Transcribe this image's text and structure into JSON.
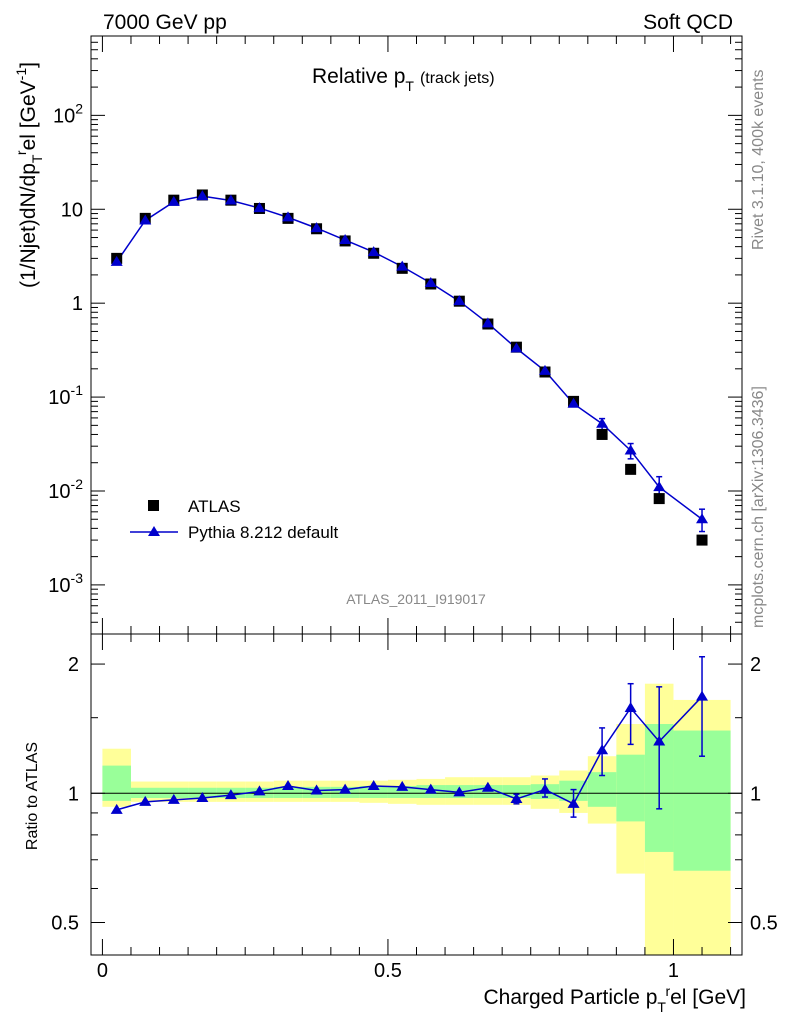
{
  "header": {
    "left": "7000 GeV pp",
    "right": "Soft QCD"
  },
  "side": {
    "rivet": "Rivet 3.1.10,  400k events",
    "source": "mcplots.cern.ch [arXiv:1306.3436]"
  },
  "watermark": "ATLAS_2011_I919017",
  "colors": {
    "data": "#000000",
    "mc": "#0000cc",
    "band_inner": "#99ff99",
    "band_outer": "#ffff99"
  },
  "chart_data": [
    {
      "type": "scatter",
      "panel": "main",
      "title_main": "Relative p",
      "title_sub": "T",
      "title_note": "(track jets)",
      "ylabel": "(1/Njet)dN/dp_T^rel [GeV^-1]",
      "yscale": "log",
      "ylim": [
        0.0003,
        700
      ],
      "xlim": [
        -0.02,
        1.12
      ],
      "ytick_labels": [
        "10^-3",
        "10^-2",
        "10^-1",
        "1",
        "10",
        "10^2"
      ],
      "legend_position": "bottom-left",
      "x": [
        0.025,
        0.075,
        0.125,
        0.175,
        0.225,
        0.275,
        0.325,
        0.375,
        0.425,
        0.475,
        0.525,
        0.575,
        0.625,
        0.675,
        0.725,
        0.775,
        0.825,
        0.875,
        0.925,
        0.975,
        1.05
      ],
      "x_halfwidth": [
        0.025,
        0.025,
        0.025,
        0.025,
        0.025,
        0.025,
        0.025,
        0.025,
        0.025,
        0.025,
        0.025,
        0.025,
        0.025,
        0.025,
        0.025,
        0.025,
        0.025,
        0.025,
        0.025,
        0.025,
        0.05
      ],
      "series": [
        {
          "name": "ATLAS",
          "marker": "square",
          "values": [
            3.0,
            8.0,
            12.5,
            14.2,
            12.5,
            10.2,
            8.0,
            6.2,
            4.6,
            3.4,
            2.35,
            1.6,
            1.05,
            0.6,
            0.34,
            0.185,
            0.09,
            0.04,
            0.017,
            0.0083,
            0.003
          ]
        },
        {
          "name": "Pythia 8.212 default",
          "marker": "triangle",
          "values": [
            2.75,
            7.6,
            12.0,
            13.8,
            12.4,
            10.3,
            8.2,
            6.3,
            4.7,
            3.5,
            2.45,
            1.64,
            1.05,
            0.61,
            0.33,
            0.19,
            0.085,
            0.052,
            0.027,
            0.011,
            0.005
          ],
          "err_low": [
            0,
            0,
            0,
            0,
            0,
            0,
            0,
            0,
            0,
            0,
            0,
            0,
            0,
            0,
            0,
            0,
            0,
            0.007,
            0.005,
            0.0028,
            0.0013
          ],
          "err_high": [
            0,
            0,
            0,
            0,
            0,
            0,
            0,
            0,
            0,
            0,
            0,
            0,
            0,
            0,
            0,
            0,
            0,
            0.007,
            0.005,
            0.0032,
            0.0014
          ]
        }
      ]
    },
    {
      "type": "line",
      "panel": "ratio",
      "ylabel": "Ratio to ATLAS",
      "xlabel": "Charged Particle p_T^rel [GeV]",
      "yscale": "log",
      "ylim": [
        0.42,
        2.35
      ],
      "xlim": [
        -0.02,
        1.12
      ],
      "ytick_labels": [
        "0.5",
        "1",
        "2"
      ],
      "xtick_labels": [
        "0",
        "0.5",
        "1"
      ],
      "bands": {
        "x_edges": [
          0.0,
          0.05,
          0.1,
          0.15,
          0.2,
          0.25,
          0.3,
          0.35,
          0.4,
          0.45,
          0.5,
          0.55,
          0.6,
          0.65,
          0.7,
          0.75,
          0.8,
          0.85,
          0.9,
          0.95,
          1.0,
          1.1
        ],
        "inner_low": [
          0.96,
          0.975,
          0.975,
          0.975,
          0.975,
          0.975,
          0.975,
          0.975,
          0.975,
          0.975,
          0.975,
          0.975,
          0.975,
          0.975,
          0.975,
          0.97,
          0.96,
          0.93,
          0.86,
          0.73,
          0.66
        ],
        "inner_high": [
          1.16,
          1.03,
          1.03,
          1.03,
          1.03,
          1.03,
          1.035,
          1.035,
          1.035,
          1.04,
          1.04,
          1.045,
          1.045,
          1.045,
          1.045,
          1.05,
          1.07,
          1.12,
          1.23,
          1.45,
          1.4
        ],
        "outer_low": [
          0.93,
          0.955,
          0.955,
          0.955,
          0.955,
          0.955,
          0.955,
          0.955,
          0.955,
          0.95,
          0.945,
          0.94,
          0.94,
          0.94,
          0.94,
          0.92,
          0.9,
          0.85,
          0.65,
          0.35,
          0.35
        ],
        "outer_high": [
          1.27,
          1.065,
          1.065,
          1.065,
          1.065,
          1.065,
          1.07,
          1.07,
          1.07,
          1.07,
          1.075,
          1.08,
          1.09,
          1.09,
          1.09,
          1.1,
          1.13,
          1.22,
          1.45,
          1.8,
          1.65
        ]
      },
      "series": [
        {
          "name": "Pythia 8.212 default",
          "x": [
            0.025,
            0.075,
            0.125,
            0.175,
            0.225,
            0.275,
            0.325,
            0.375,
            0.425,
            0.475,
            0.525,
            0.575,
            0.625,
            0.675,
            0.725,
            0.775,
            0.825,
            0.875,
            0.925,
            0.975,
            1.05
          ],
          "values": [
            0.915,
            0.955,
            0.965,
            0.975,
            0.99,
            1.01,
            1.04,
            1.015,
            1.02,
            1.04,
            1.035,
            1.02,
            1.005,
            1.03,
            0.97,
            1.02,
            0.945,
            1.26,
            1.58,
            1.32,
            1.68
          ],
          "err_low": [
            0,
            0,
            0,
            0,
            0,
            0,
            0,
            0,
            0,
            0,
            0,
            0,
            0,
            0,
            0.025,
            0.04,
            0.065,
            0.16,
            0.28,
            0.4,
            0.46
          ],
          "err_high": [
            0,
            0,
            0,
            0,
            0,
            0,
            0,
            0,
            0,
            0,
            0,
            0,
            0,
            0,
            0.025,
            0.06,
            0.075,
            0.16,
            0.22,
            0.45,
            0.4
          ]
        }
      ]
    }
  ]
}
